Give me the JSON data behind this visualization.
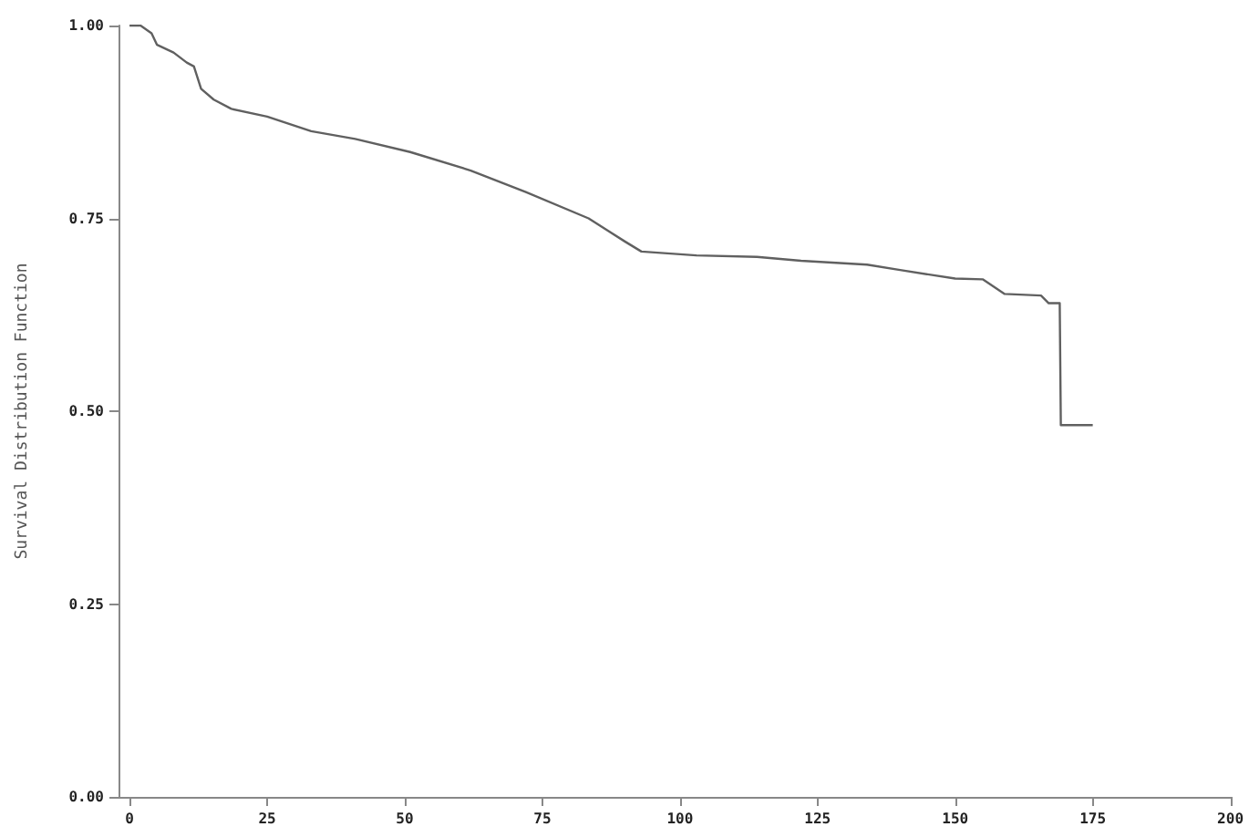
{
  "chart_data": {
    "type": "line",
    "ylabel": "Survival Distribution Function",
    "x": [
      0,
      2,
      4,
      5,
      8,
      10.4,
      11.7,
      13,
      15.3,
      18.5,
      25,
      33,
      41,
      51,
      62,
      72,
      83.4,
      90,
      93,
      103,
      114,
      122,
      134,
      140,
      150,
      155,
      159,
      165.6,
      167,
      169,
      169.2,
      175
    ],
    "series": [
      {
        "color": "#606060",
        "values": [
          1.0,
          1.0,
          0.99,
          0.975,
          0.965,
          0.952,
          0.947,
          0.918,
          0.904,
          0.892,
          0.882,
          0.863,
          0.853,
          0.836,
          0.812,
          0.784,
          0.75,
          0.72,
          0.707,
          0.702,
          0.7,
          0.695,
          0.69,
          0.683,
          0.672,
          0.671,
          0.652,
          0.65,
          0.64,
          0.64,
          0.482,
          0.482
        ]
      }
    ],
    "xlim": [
      -2,
      200
    ],
    "xticks": [
      0,
      25,
      50,
      75,
      100,
      125,
      150,
      175,
      200
    ],
    "ylim": [
      0,
      1
    ],
    "yticks": [
      {
        "value": 0,
        "label": "0.00"
      },
      {
        "value": 0.25,
        "label": "0.25"
      },
      {
        "value": 0.5,
        "label": "0.50"
      },
      {
        "value": 0.75,
        "label": "0.75"
      },
      {
        "value": 1,
        "label": "1.00"
      }
    ],
    "grid": false,
    "marker": "none",
    "line_style": "solid"
  }
}
